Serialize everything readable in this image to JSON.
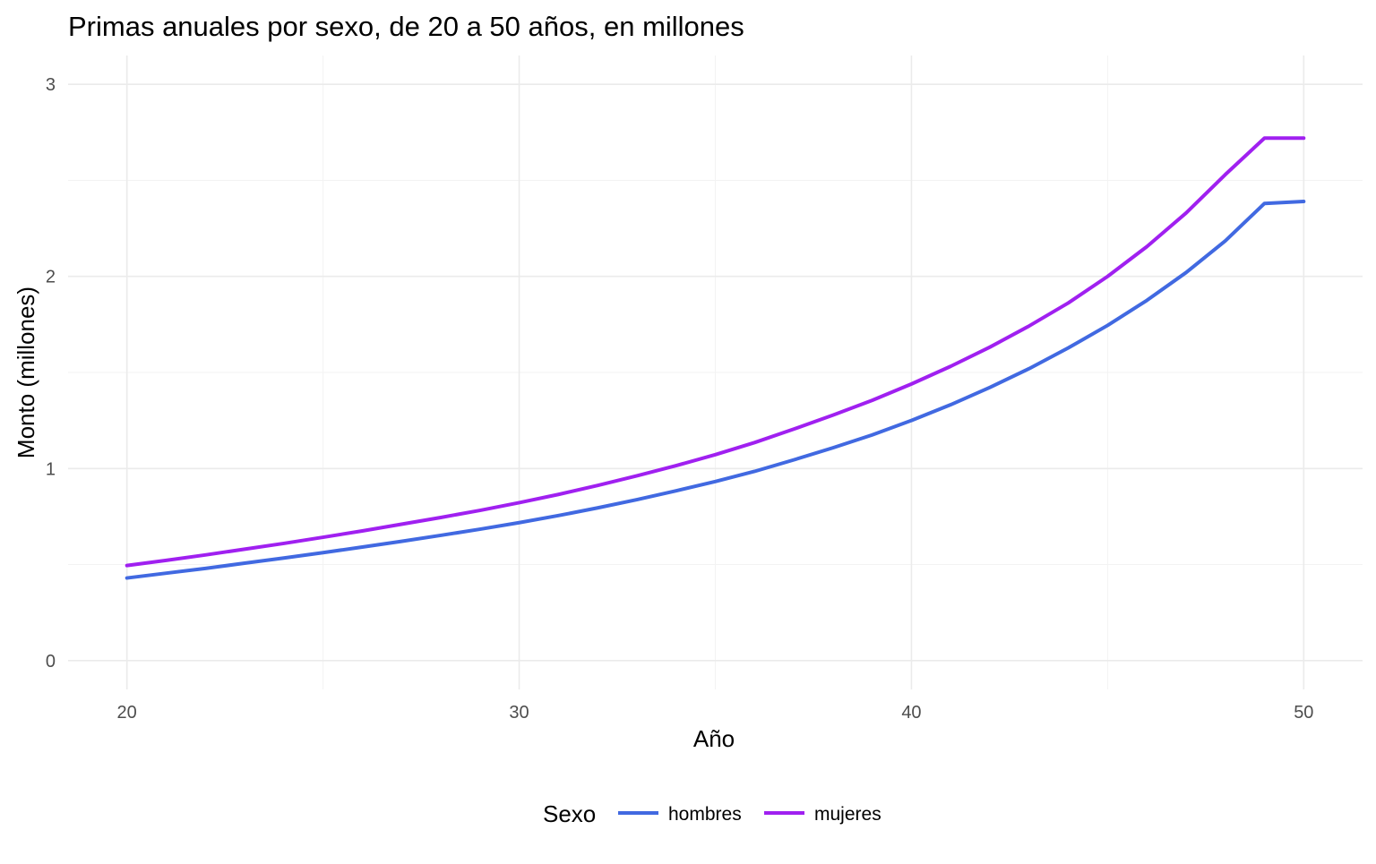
{
  "chart_data": {
    "type": "line",
    "title": "Primas anuales por sexo, de 20 a 50 años, en millones",
    "xlabel": "Año",
    "ylabel": "Monto (millones)",
    "xlim": [
      18.5,
      51.5
    ],
    "ylim": [
      -0.15,
      3.15
    ],
    "x_ticks": [
      20,
      30,
      40,
      50
    ],
    "x_tick_labels": [
      "20",
      "30",
      "40",
      "50"
    ],
    "x_minor_ticks": [
      25,
      35,
      45
    ],
    "y_ticks": [
      0,
      1,
      2,
      3
    ],
    "y_tick_labels": [
      "0",
      "1",
      "2",
      "3"
    ],
    "y_minor_ticks": [
      0.5,
      1.5,
      2.5
    ],
    "grid": true,
    "legend": {
      "title": "Sexo",
      "position": "bottom"
    },
    "x": [
      20,
      21,
      22,
      23,
      24,
      25,
      26,
      27,
      28,
      29,
      30,
      31,
      32,
      33,
      34,
      35,
      36,
      37,
      38,
      39,
      40,
      41,
      42,
      43,
      44,
      45,
      46,
      47,
      48,
      49,
      50
    ],
    "series": [
      {
        "name": "hombres",
        "color": "#4169E1",
        "values": [
          0.43,
          0.455,
          0.48,
          0.507,
          0.534,
          0.562,
          0.591,
          0.621,
          0.652,
          0.684,
          0.718,
          0.755,
          0.795,
          0.838,
          0.884,
          0.932,
          0.985,
          1.045,
          1.108,
          1.175,
          1.25,
          1.332,
          1.422,
          1.52,
          1.628,
          1.745,
          1.875,
          2.02,
          2.185,
          2.38,
          2.39
        ]
      },
      {
        "name": "mujeres",
        "color": "#A020F0",
        "values": [
          0.495,
          0.522,
          0.55,
          0.58,
          0.61,
          0.642,
          0.675,
          0.71,
          0.745,
          0.782,
          0.822,
          0.865,
          0.912,
          0.962,
          1.015,
          1.072,
          1.135,
          1.205,
          1.278,
          1.355,
          1.44,
          1.532,
          1.632,
          1.742,
          1.862,
          2.0,
          2.155,
          2.33,
          2.53,
          2.72,
          2.72
        ]
      }
    ]
  }
}
